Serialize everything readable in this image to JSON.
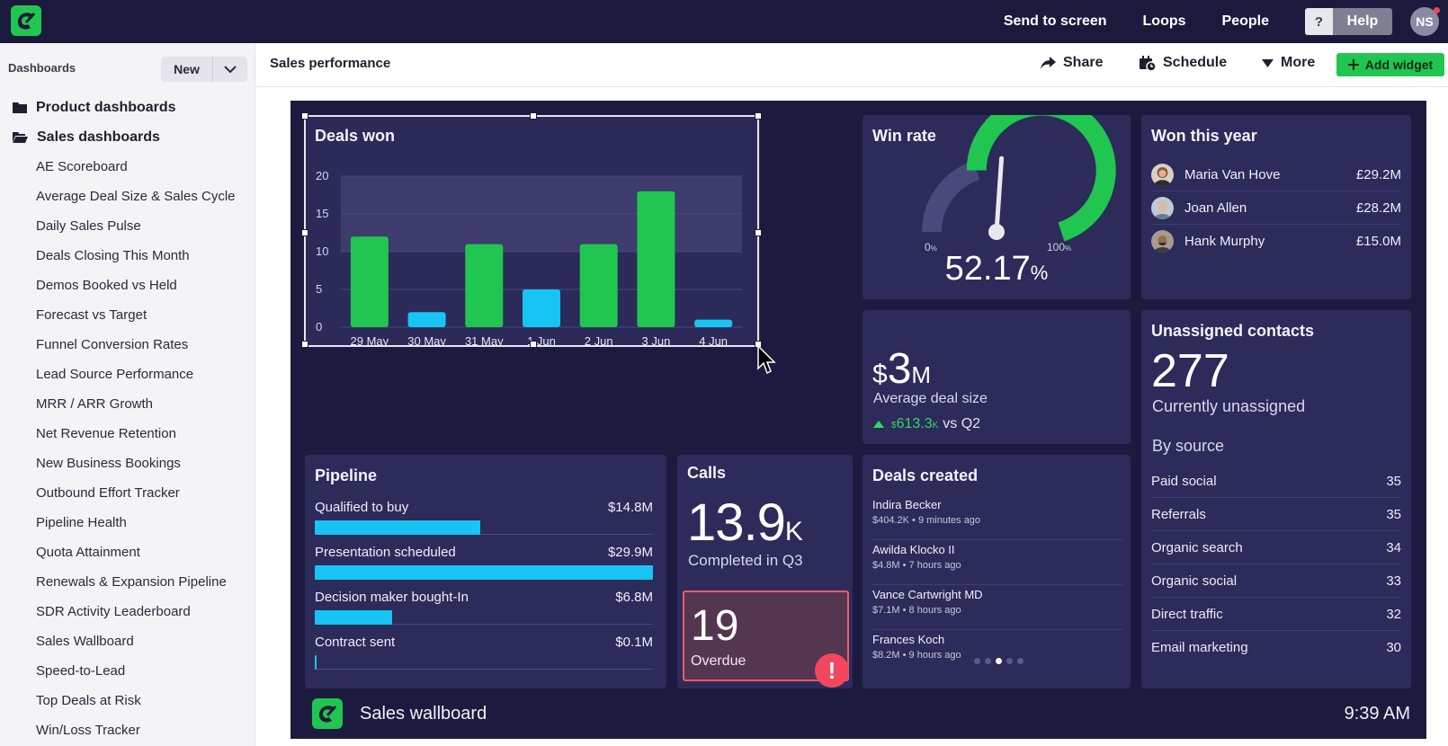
{
  "topbar": {
    "nav": [
      "Send to screen",
      "Loops",
      "People"
    ],
    "help_q": "?",
    "help_label": "Help",
    "user_initials": "NS"
  },
  "sidebar": {
    "title": "Dashboards",
    "new_label": "New",
    "folders": [
      "Product dashboards",
      "Sales dashboards"
    ],
    "items": [
      "AE Scoreboard",
      "Average Deal Size & Sales Cycle",
      "Daily Sales Pulse",
      "Deals Closing This Month",
      "Demos Booked vs Held",
      "Forecast vs Target",
      "Funnel Conversion Rates",
      "Lead Source Performance",
      "MRR / ARR Growth",
      "Net Revenue Retention",
      "New Business Bookings",
      "Outbound Effort Tracker",
      "Pipeline Health",
      "Quota Attainment",
      "Renewals & Expansion Pipeline",
      "SDR Activity Leaderboard",
      "Sales Wallboard",
      "Speed-to-Lead",
      "Top Deals at Risk",
      "Win/Loss Tracker"
    ]
  },
  "header": {
    "title": "Sales performance",
    "share": "Share",
    "schedule": "Schedule",
    "more": "More",
    "add_widget": "Add widget"
  },
  "colors": {
    "green": "#20c650",
    "cyan": "#17c4f3",
    "panel": "#2c2b5a",
    "background": "#1c1b3f"
  },
  "deals_won": {
    "title": "Deals won",
    "chart_data": {
      "type": "bar",
      "categories": [
        "29 May",
        "30 May",
        "31 May",
        "1 Jun",
        "2 Jun",
        "3 Jun",
        "4 Jun"
      ],
      "values": [
        12,
        2,
        11,
        5,
        11,
        18,
        1
      ],
      "colors": [
        "green",
        "cyan",
        "green",
        "cyan",
        "green",
        "green",
        "cyan"
      ],
      "yticks": [
        0,
        5,
        10,
        15,
        20
      ],
      "ylim": [
        0,
        20
      ],
      "target_band": [
        10,
        20
      ]
    }
  },
  "win_rate": {
    "title": "Win rate",
    "min_label": "0",
    "max_label": "100",
    "pct_small": "%",
    "value": "52.17",
    "value_num": 52.17,
    "pct": "%"
  },
  "won_this_year": {
    "title": "Won this year",
    "rows": [
      {
        "name": "Maria Van Hove",
        "value": "£29.2M"
      },
      {
        "name": "Joan Allen",
        "value": "£28.2M"
      },
      {
        "name": "Hank Murphy",
        "value": "£15.0M"
      }
    ]
  },
  "avg_deal": {
    "currency": "$",
    "value": "3",
    "unit": "M",
    "label": "Average deal size",
    "delta_cur": "$",
    "delta_val": "613.3",
    "delta_unit": "K",
    "delta_suffix": "vs Q2"
  },
  "unassigned": {
    "title": "Unassigned contacts",
    "value": "277",
    "label": "Currently unassigned",
    "by_source": "By source",
    "rows": [
      {
        "source": "Paid social",
        "count": "35"
      },
      {
        "source": "Referrals",
        "count": "35"
      },
      {
        "source": "Organic search",
        "count": "34"
      },
      {
        "source": "Organic social",
        "count": "33"
      },
      {
        "source": "Direct traffic",
        "count": "32"
      },
      {
        "source": "Email marketing",
        "count": "30"
      }
    ]
  },
  "pipeline": {
    "title": "Pipeline",
    "rows": [
      {
        "label": "Qualified to buy",
        "value": "$14.8M",
        "fraction": 0.49
      },
      {
        "label": "Presentation scheduled",
        "value": "$29.9M",
        "fraction": 1.0
      },
      {
        "label": "Decision maker bought-In",
        "value": "$6.8M",
        "fraction": 0.23
      },
      {
        "label": "Contract sent",
        "value": "$0.1M",
        "fraction": 0.005
      }
    ]
  },
  "calls": {
    "title": "Calls",
    "value": "13.9",
    "unit": "K",
    "label": "Completed in Q3",
    "overdue_value": "19",
    "overdue_label": "Overdue",
    "alert": "!"
  },
  "deals_created": {
    "title": "Deals created",
    "rows": [
      {
        "name": "Indira Becker",
        "meta": "$404.2K • 9 minutes ago"
      },
      {
        "name": "Awilda Klocko II",
        "meta": "$4.8M • 7 hours ago"
      },
      {
        "name": "Vance Cartwright MD",
        "meta": "$7.1M • 8 hours ago"
      },
      {
        "name": "Frances Koch",
        "meta": "$8.2M • 9 hours ago"
      }
    ],
    "pager_active": 3,
    "pager_count": 5
  },
  "footer": {
    "title": "Sales wallboard",
    "time": "9:39 AM"
  }
}
